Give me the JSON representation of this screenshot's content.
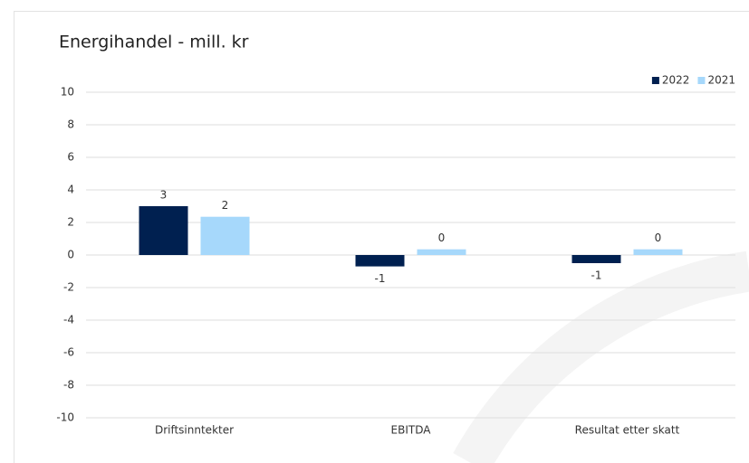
{
  "chart_data": {
    "type": "bar",
    "title": "Energihandel - mill. kr",
    "categories": [
      "Driftsinntekter",
      "EBITDA",
      "Resultat etter skatt"
    ],
    "series": [
      {
        "name": "2022",
        "color": "#002050",
        "values": [
          3.0,
          -0.7,
          -0.5
        ],
        "value_labels": [
          "3",
          "-1",
          "-1"
        ]
      },
      {
        "name": "2021",
        "color": "#a6d8fb",
        "values": [
          2.35,
          0.35,
          0.35
        ],
        "value_labels": [
          "2",
          "0",
          "0"
        ]
      }
    ],
    "ylim": [
      -10,
      10
    ],
    "yticks": [
      -10,
      -8,
      -6,
      -4,
      -2,
      0,
      2,
      4,
      6,
      8,
      10
    ],
    "grid": true,
    "legend": "top-right"
  }
}
